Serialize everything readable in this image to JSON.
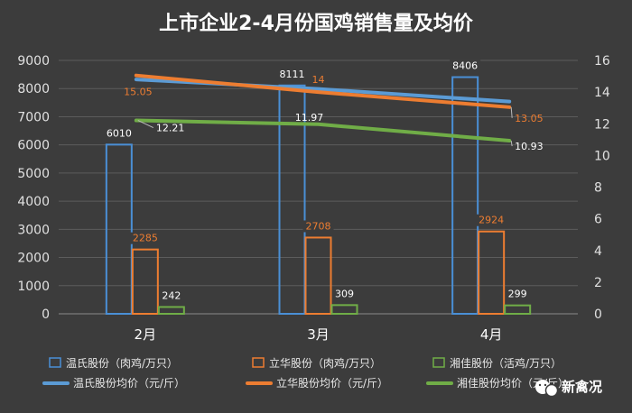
{
  "chart_data": {
    "type": "bar+line",
    "title": "上市企业2-4月份国鸡销售量及均价",
    "categories": [
      "2月",
      "3月",
      "4月"
    ],
    "y_left": {
      "range": [
        0,
        9000
      ],
      "ticks": [
        "0",
        "1000",
        "2000",
        "3000",
        "4000",
        "5000",
        "6000",
        "7000",
        "8000",
        "9000"
      ]
    },
    "y_right": {
      "range": [
        0,
        16
      ],
      "ticks": [
        "0",
        "2",
        "4",
        "6",
        "8",
        "10",
        "12",
        "14",
        "16"
      ]
    },
    "bar_series": [
      {
        "name": "温氏股份（肉鸡/万只）",
        "color": "#4a8fd6",
        "values": [
          6010,
          8111,
          8406
        ],
        "labels": [
          "6010",
          "8111",
          "8406"
        ]
      },
      {
        "name": "立华股份（肉鸡/万只）",
        "color": "#ed7d31",
        "values": [
          2285,
          2708,
          2924
        ],
        "labels": [
          "2285",
          "2708",
          "2924"
        ]
      },
      {
        "name": "湘佳股份（活鸡/万只）",
        "color": "#70ad47",
        "values": [
          242,
          309,
          299
        ],
        "labels": [
          "242",
          "309",
          "299"
        ]
      }
    ],
    "line_series": [
      {
        "name": "温氏股份均价（元/斤）",
        "color": "#5b9bd5",
        "values": [
          14.8,
          14.2,
          13.4
        ],
        "labels": [
          "",
          "",
          ""
        ]
      },
      {
        "name": "立华股份均价（元/斤）",
        "color": "#ed7d31",
        "values": [
          15.05,
          14.0,
          13.05
        ],
        "labels": [
          "15.05",
          "14",
          "13.05"
        ]
      },
      {
        "name": "湘佳股份均价（元/斤）",
        "color": "#70ad47",
        "values": [
          12.21,
          11.97,
          10.93
        ],
        "labels": [
          "12.21",
          "11.97",
          "10.93"
        ]
      }
    ],
    "grid": true,
    "legend_position": "bottom"
  },
  "watermark": {
    "text": "新禽况",
    "icon": "wechat-icon"
  }
}
